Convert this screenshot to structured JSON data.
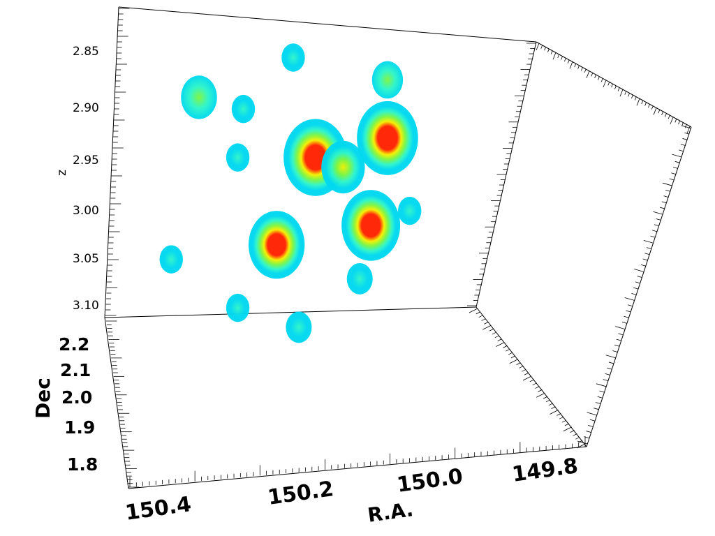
{
  "chart_data": {
    "type": "scatter",
    "style": "3d-isosurface",
    "axes": {
      "x": {
        "label": "R.A.",
        "ticks": [
          "150.4",
          "150.2",
          "150.0",
          "149.8"
        ],
        "range": [
          150.45,
          149.78
        ]
      },
      "y": {
        "label": "Dec",
        "ticks": [
          "1.8",
          "1.9",
          "2.0",
          "2.1",
          "2.2"
        ],
        "range": [
          1.76,
          2.26
        ]
      },
      "z": {
        "label": "z",
        "ticks": [
          "2.85",
          "2.90",
          "2.95",
          "3.00",
          "3.05",
          "3.10"
        ],
        "range": [
          2.82,
          3.12
        ]
      }
    },
    "colorscale": [
      "#00d8f0",
      "#2ef5c8",
      "#7ef542",
      "#f5f000",
      "#ff2200"
    ],
    "clumps": [
      {
        "ra": 150.07,
        "z": 2.955,
        "level": 1.0
      },
      {
        "ra": 149.94,
        "z": 2.935,
        "level": 0.95
      },
      {
        "ra": 149.97,
        "z": 3.025,
        "level": 0.9
      },
      {
        "ra": 150.14,
        "z": 3.045,
        "level": 0.85
      },
      {
        "ra": 150.02,
        "z": 2.965,
        "level": 0.6
      },
      {
        "ra": 150.28,
        "z": 2.893,
        "level": 0.45
      },
      {
        "ra": 149.94,
        "z": 2.875,
        "level": 0.35
      },
      {
        "ra": 150.11,
        "z": 2.852,
        "level": 0.2
      },
      {
        "ra": 150.2,
        "z": 2.905,
        "level": 0.2
      },
      {
        "ra": 150.21,
        "z": 2.955,
        "level": 0.2
      },
      {
        "ra": 149.9,
        "z": 3.01,
        "level": 0.2
      },
      {
        "ra": 150.21,
        "z": 3.11,
        "level": 0.2
      },
      {
        "ra": 150.1,
        "z": 3.13,
        "level": 0.25
      },
      {
        "ra": 149.99,
        "z": 3.08,
        "level": 0.25
      },
      {
        "ra": 150.33,
        "z": 3.06,
        "level": 0.2
      }
    ]
  }
}
